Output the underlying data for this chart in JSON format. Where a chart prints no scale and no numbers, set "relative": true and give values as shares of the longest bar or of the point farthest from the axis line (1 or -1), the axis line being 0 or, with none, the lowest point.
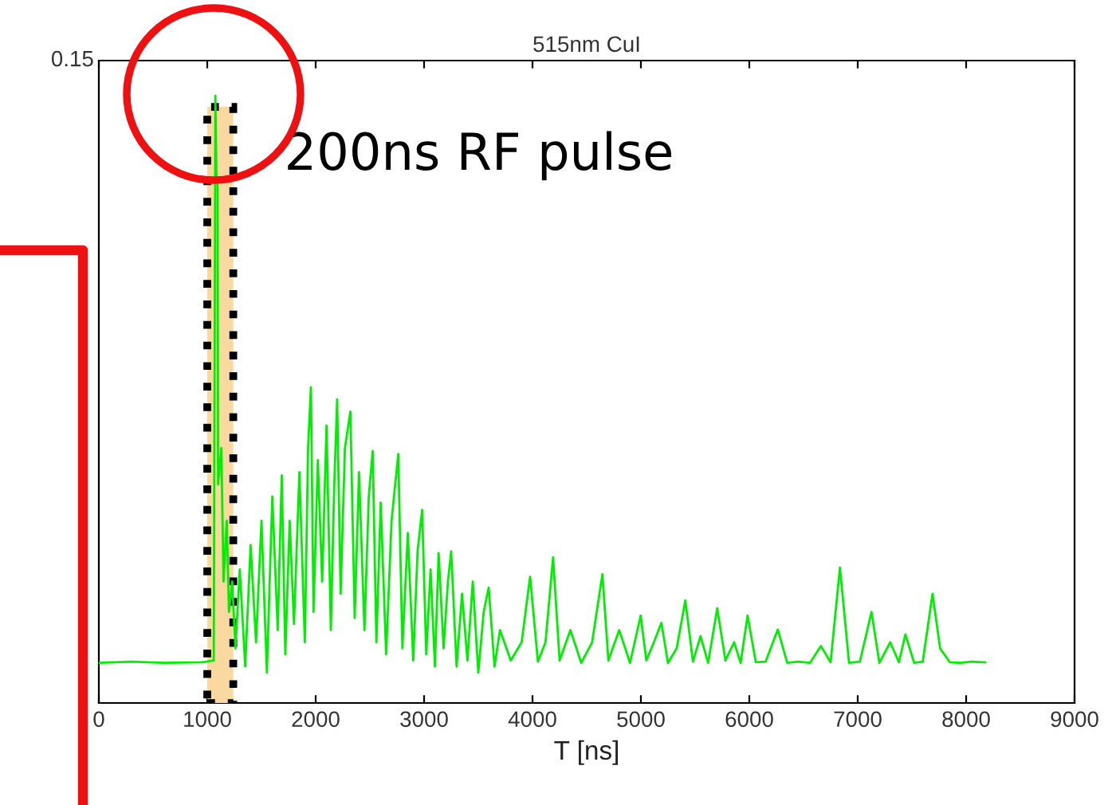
{
  "chart_data": {
    "type": "line",
    "title": "515nm CuI",
    "xlabel": "T [ns]",
    "relative": true,
    "xlim": [
      0,
      9000
    ],
    "xticks": [
      0,
      1000,
      2000,
      3000,
      4000,
      5000,
      6000,
      7000,
      8000,
      9000
    ],
    "annotations": [
      "0.15"
    ],
    "bands": [
      {
        "axis": "x",
        "from": 1000,
        "to": 1240,
        "label": "200ns RF pulse",
        "color": "#f9d9a0"
      }
    ],
    "series": [
      {
        "color": "#00ee00",
        "x": [
          0,
          300,
          600,
          950,
          1060,
          1075,
          1085,
          1095,
          1100,
          1130,
          1150,
          1180,
          1200,
          1230,
          1260,
          1300,
          1350,
          1400,
          1450,
          1500,
          1550,
          1600,
          1650,
          1687,
          1720,
          1760,
          1800,
          1850,
          1900,
          1930,
          1956,
          1980,
          2020,
          2060,
          2100,
          2140,
          2170,
          2198,
          2230,
          2270,
          2320,
          2360,
          2400,
          2450,
          2490,
          2526,
          2560,
          2600,
          2650,
          2700,
          2762,
          2800,
          2850,
          2900,
          2940,
          2982,
          3020,
          3060,
          3100,
          3134,
          3180,
          3220,
          3250,
          3300,
          3350,
          3400,
          3449,
          3500,
          3550,
          3596,
          3650,
          3700,
          3800,
          3900,
          3978,
          4050,
          4120,
          4190,
          4250,
          4350,
          4450,
          4550,
          4645,
          4700,
          4800,
          4900,
          4998,
          5050,
          5120,
          5189,
          5250,
          5330,
          5410,
          5480,
          5550,
          5620,
          5704,
          5780,
          5860,
          5920,
          5984,
          6060,
          6150,
          6263,
          6350,
          6450,
          6560,
          6660,
          6750,
          6836,
          6920,
          7020,
          7127,
          7200,
          7300,
          7380,
          7440,
          7520,
          7600,
          7690,
          7760,
          7850,
          7950,
          8050,
          8176
        ],
        "values": [
          0.066,
          0.068,
          0.066,
          0.067,
          0.07,
          1.0,
          0.86,
          0.86,
          0.36,
          0.42,
          0.2,
          0.3,
          0.15,
          0.2,
          0.09,
          0.22,
          0.06,
          0.26,
          0.1,
          0.3,
          0.05,
          0.34,
          0.12,
          0.375,
          0.08,
          0.3,
          0.13,
          0.38,
          0.1,
          0.42,
          0.52,
          0.15,
          0.4,
          0.2,
          0.457,
          0.12,
          0.35,
          0.5,
          0.18,
          0.42,
          0.48,
          0.14,
          0.38,
          0.12,
          0.34,
          0.415,
          0.1,
          0.33,
          0.08,
          0.3,
          0.41,
          0.09,
          0.28,
          0.07,
          0.25,
          0.318,
          0.08,
          0.22,
          0.06,
          0.247,
          0.09,
          0.2,
          0.25,
          0.06,
          0.18,
          0.07,
          0.2,
          0.05,
          0.15,
          0.19,
          0.06,
          0.12,
          0.07,
          0.1,
          0.208,
          0.068,
          0.1,
          0.24,
          0.07,
          0.12,
          0.066,
          0.1,
          0.212,
          0.07,
          0.12,
          0.066,
          0.144,
          0.07,
          0.1,
          0.132,
          0.066,
          0.09,
          0.169,
          0.068,
          0.11,
          0.066,
          0.156,
          0.07,
          0.1,
          0.066,
          0.144,
          0.067,
          0.068,
          0.121,
          0.066,
          0.068,
          0.066,
          0.094,
          0.067,
          0.223,
          0.066,
          0.068,
          0.15,
          0.066,
          0.1,
          0.067,
          0.113,
          0.066,
          0.068,
          0.18,
          0.09,
          0.067,
          0.066,
          0.068,
          0.067
        ]
      }
    ]
  }
}
